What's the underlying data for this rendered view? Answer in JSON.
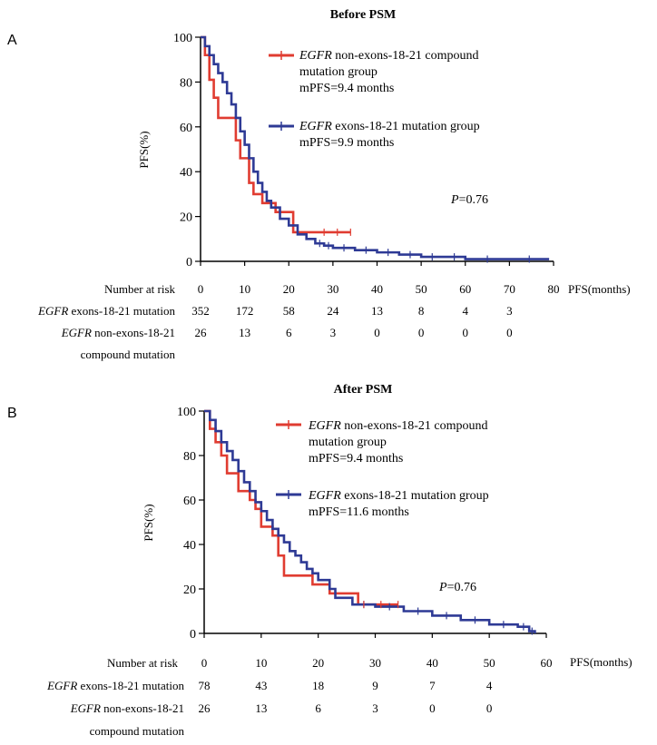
{
  "panels": [
    {
      "letter": "A",
      "title": "Before PSM",
      "ylabel": "PFS(%)",
      "xunit": "PFS(months)",
      "p_value_prefix": "P",
      "p_value_rest": "=0.76",
      "legend": [
        {
          "gene": "EGFR",
          "text": "non-exons-18-21 compound",
          "text2": "mutation group",
          "stat": "mPFS=9.4 months"
        },
        {
          "gene": "EGFR",
          "text": "exons-18-21 mutation group",
          "text2": "",
          "stat": "mPFS=9.9 months"
        }
      ],
      "risk": {
        "header": "Number at risk",
        "rows": [
          {
            "gene": "EGFR",
            "label": "exons-18-21 mutation",
            "label2": "",
            "values": [
              "352",
              "172",
              "58",
              "24",
              "13",
              "8",
              "4",
              "3"
            ]
          },
          {
            "gene": "EGFR",
            "label": "non-exons-18-21",
            "label2": "compound mutation",
            "values": [
              "26",
              "13",
              "6",
              "3",
              "0",
              "0",
              "0",
              "0"
            ]
          }
        ]
      }
    },
    {
      "letter": "B",
      "title": "After PSM",
      "ylabel": "PFS(%)",
      "xunit": "PFS(months)",
      "p_value_prefix": "P",
      "p_value_rest": "=0.76",
      "legend": [
        {
          "gene": "EGFR",
          "text": "non-exons-18-21 compound",
          "text2": "mutation group",
          "stat": "mPFS=9.4 months"
        },
        {
          "gene": "EGFR",
          "text": "exons-18-21 mutation group",
          "text2": "",
          "stat": "mPFS=11.6 months"
        }
      ],
      "risk": {
        "header": "Number at risk",
        "rows": [
          {
            "gene": "EGFR",
            "label": "exons-18-21 mutation",
            "label2": "",
            "values": [
              "78",
              "43",
              "18",
              "9",
              "7",
              "4"
            ]
          },
          {
            "gene": "EGFR",
            "label": "non-exons-18-21",
            "label2": "compound mutation",
            "values": [
              "26",
              "13",
              "6",
              "3",
              "0",
              "0"
            ]
          }
        ]
      }
    }
  ],
  "chart_data": [
    {
      "type": "line",
      "step": true,
      "title": "Before PSM",
      "xlabel": "PFS(months)",
      "ylabel": "PFS(%)",
      "xlim": [
        0,
        80
      ],
      "ylim": [
        0,
        100
      ],
      "x_ticks": [
        0,
        10,
        20,
        30,
        40,
        50,
        60,
        70,
        80
      ],
      "y_ticks": [
        0,
        20,
        40,
        60,
        80,
        100
      ],
      "series": [
        {
          "name": "EGFR non-exons-18-21 compound mutation group",
          "color": "#e03c31",
          "x": [
            0,
            1,
            2,
            3,
            4,
            5,
            8,
            9,
            11,
            12,
            14,
            17,
            21,
            34
          ],
          "y": [
            100,
            92,
            81,
            73,
            64,
            64,
            54,
            46,
            35,
            30,
            26,
            22,
            13,
            13
          ]
        },
        {
          "name": "EGFR exons-18-21 mutation group",
          "color": "#2e3a95",
          "x": [
            0,
            1,
            2,
            3,
            4,
            5,
            6,
            7,
            8,
            9,
            10,
            11,
            12,
            13,
            14,
            15,
            16,
            18,
            20,
            22,
            24,
            26,
            28,
            30,
            35,
            40,
            45,
            50,
            55,
            60,
            70,
            79
          ],
          "y": [
            100,
            96,
            92,
            88,
            84,
            80,
            75,
            70,
            64,
            58,
            52,
            46,
            40,
            35,
            31,
            27,
            24,
            19,
            16,
            12,
            10,
            8,
            7,
            6,
            5,
            4,
            3,
            2,
            2,
            1,
            1,
            1
          ]
        }
      ],
      "annotation": "P=0.76"
    },
    {
      "type": "line",
      "step": true,
      "title": "After PSM",
      "xlabel": "PFS(months)",
      "ylabel": "PFS(%)",
      "xlim": [
        0,
        60
      ],
      "ylim": [
        0,
        100
      ],
      "x_ticks": [
        0,
        10,
        20,
        30,
        40,
        50,
        60
      ],
      "y_ticks": [
        0,
        20,
        40,
        60,
        80,
        100
      ],
      "series": [
        {
          "name": "EGFR non-exons-18-21 compound mutation group",
          "color": "#e03c31",
          "x": [
            0,
            1,
            2,
            3,
            4,
            6,
            8,
            9,
            10,
            12,
            13,
            14,
            19,
            22,
            27,
            34
          ],
          "y": [
            100,
            92,
            86,
            80,
            72,
            64,
            60,
            56,
            48,
            44,
            35,
            26,
            22,
            18,
            13,
            13
          ]
        },
        {
          "name": "EGFR exons-18-21 mutation group",
          "color": "#2e3a95",
          "x": [
            0,
            1,
            2,
            3,
            4,
            5,
            6,
            7,
            8,
            9,
            10,
            11,
            12,
            13,
            14,
            15,
            16,
            17,
            18,
            19,
            20,
            22,
            23,
            26,
            30,
            35,
            40,
            45,
            50,
            55,
            57,
            58
          ],
          "y": [
            100,
            96,
            91,
            86,
            82,
            78,
            73,
            68,
            64,
            59,
            55,
            51,
            47,
            44,
            41,
            37,
            35,
            32,
            29,
            27,
            24,
            20,
            16,
            13,
            12,
            10,
            8,
            6,
            4,
            3,
            1,
            0
          ]
        }
      ],
      "annotation": "P=0.76"
    }
  ]
}
